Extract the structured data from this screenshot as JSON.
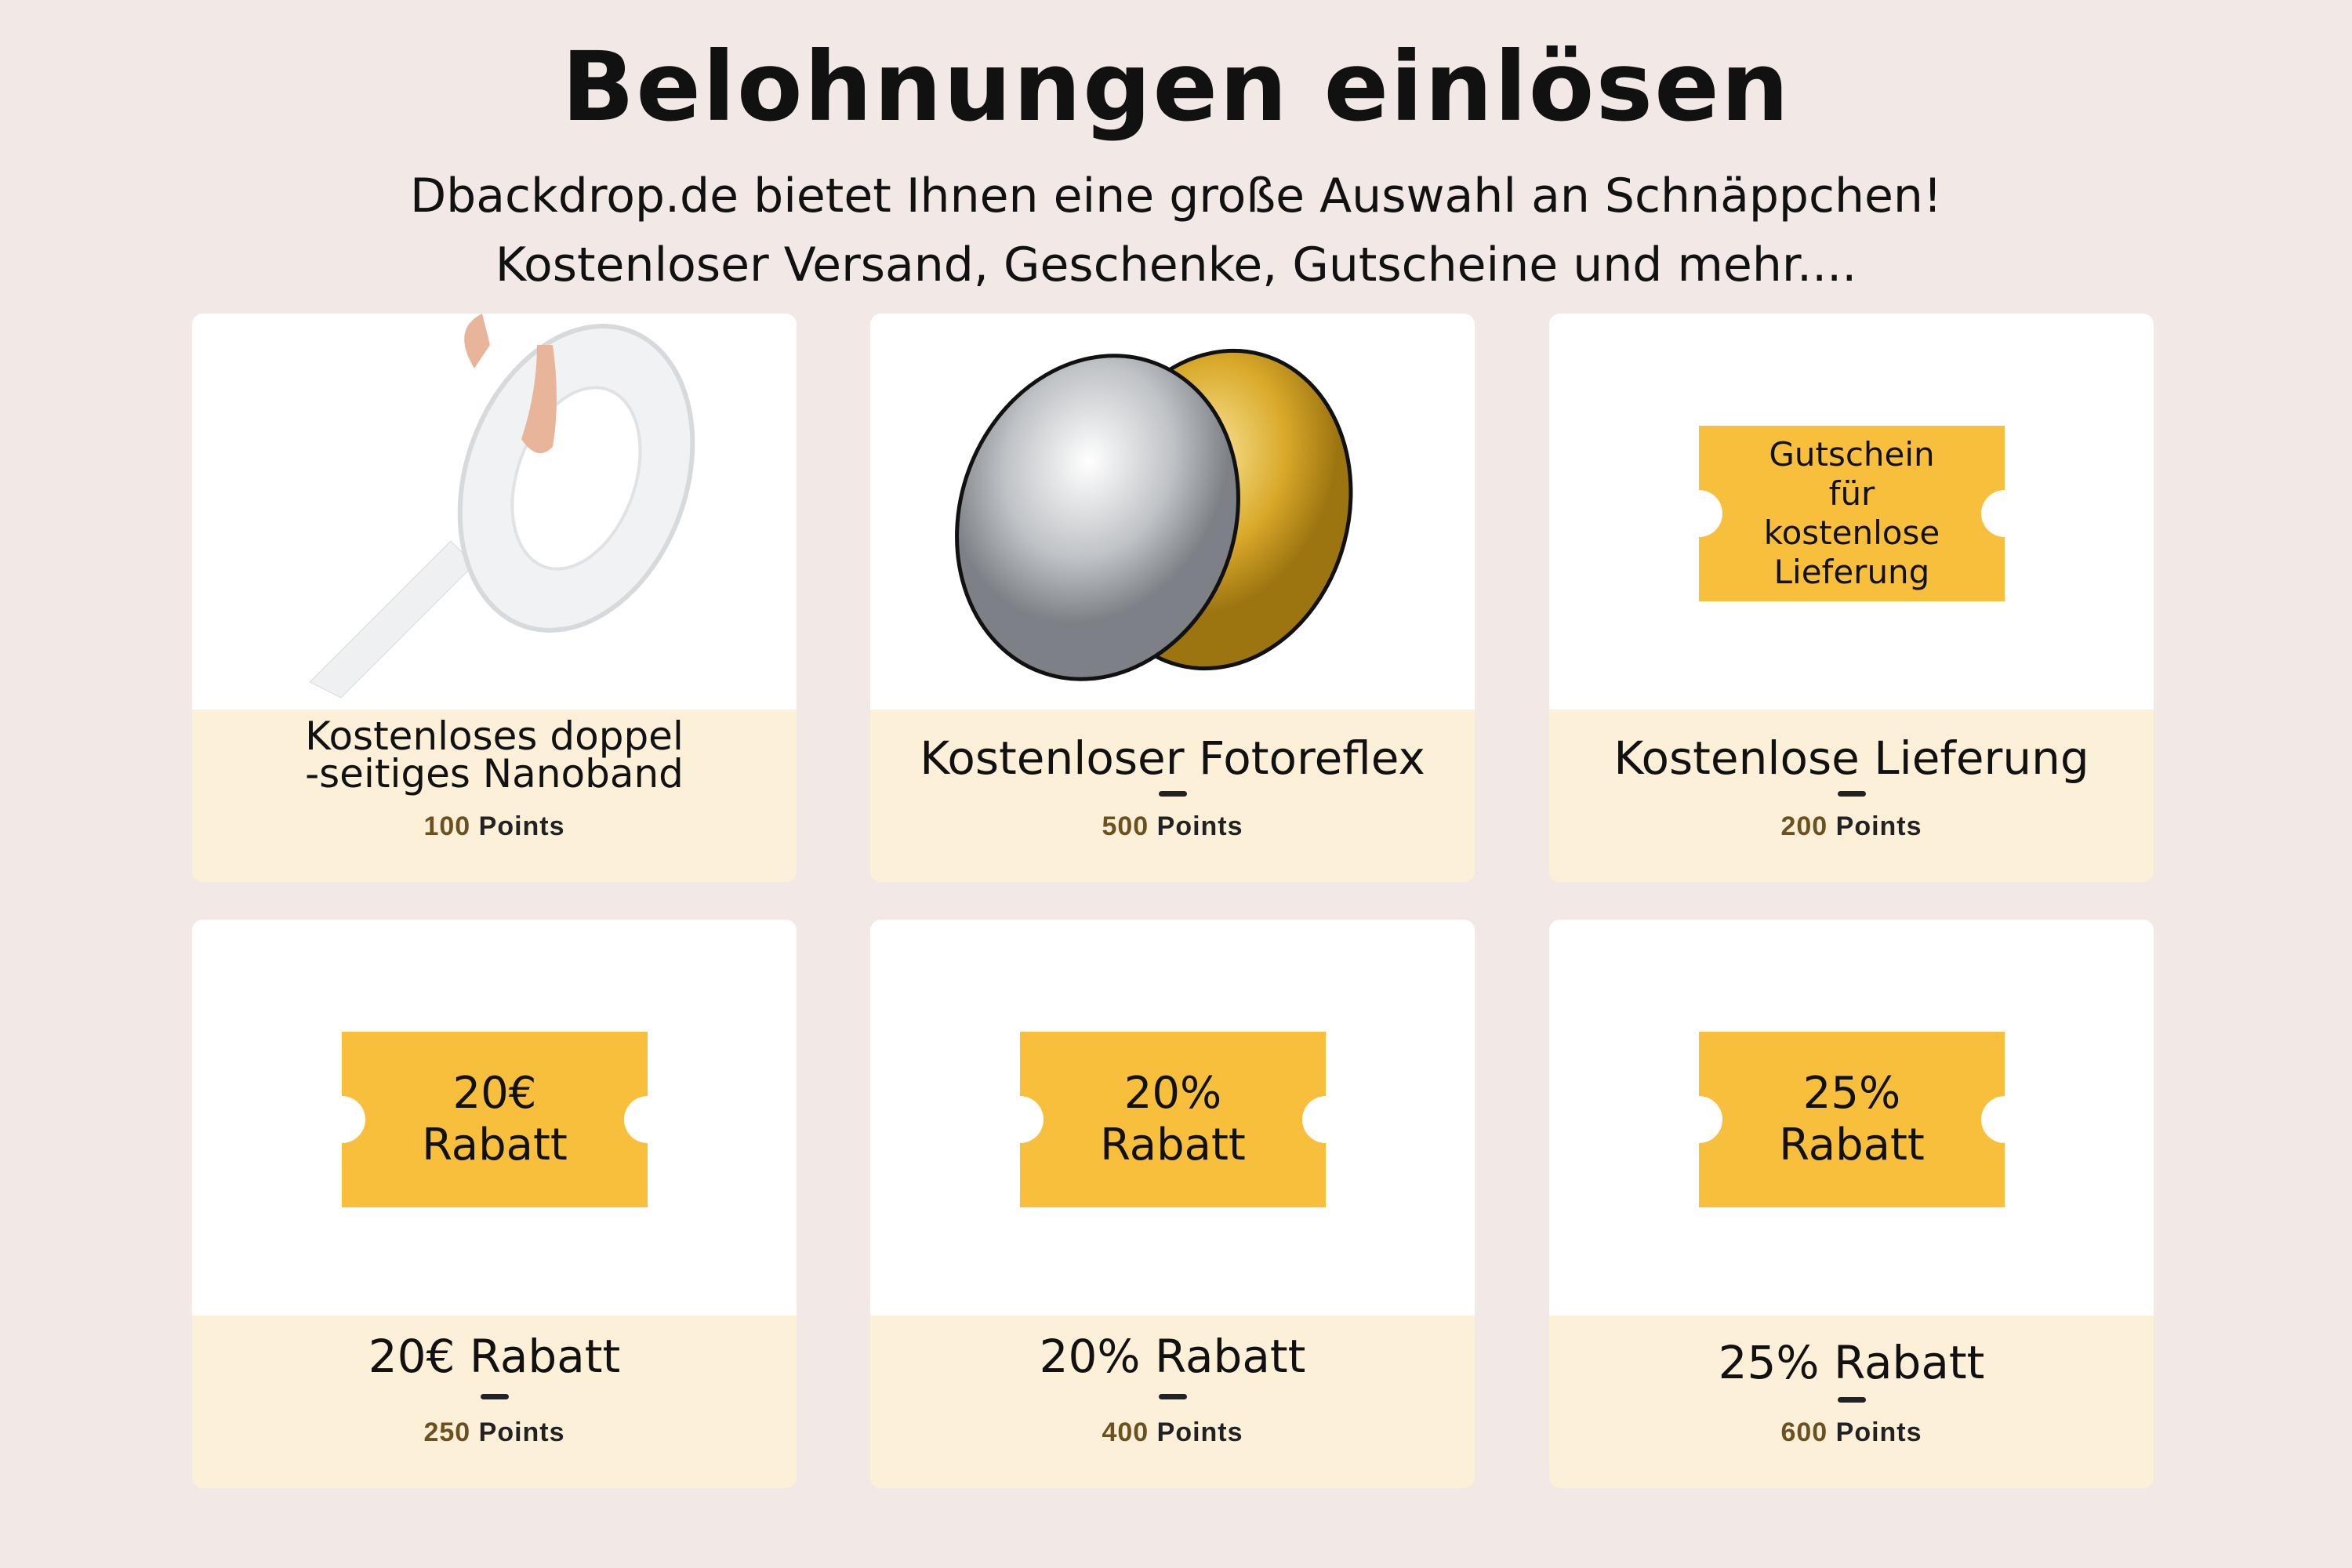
{
  "header": {
    "title": "Belohnungen einlösen",
    "subtitle_line1": "Dbackdrop.de bietet Ihnen eine große Auswahl an Schnäppchen!",
    "subtitle_line2": "Kostenloser Versand, Geschenke, Gutscheine und mehr...."
  },
  "rewards": [
    {
      "title_line1": "Kostenloses doppel",
      "title_line2": "-seitiges Nanoband",
      "points": "100",
      "points_label": "Points",
      "image": "nano-tape"
    },
    {
      "title": "Kostenloser Fotoreflex",
      "points": "500",
      "points_label": "Points",
      "image": "reflector"
    },
    {
      "title": "Kostenlose Lieferung",
      "points": "200",
      "points_label": "Points",
      "ticket": "Gutschein für kostenlose Lieferung"
    },
    {
      "title": "20€ Rabatt",
      "points": "250",
      "points_label": "Points",
      "ticket_line1": "20€",
      "ticket_line2": "Rabatt"
    },
    {
      "title": "20% Rabatt",
      "points": "400",
      "points_label": "Points",
      "ticket_line1": "20%",
      "ticket_line2": "Rabatt"
    },
    {
      "title": "25% Rabatt",
      "points": "600",
      "points_label": "Points",
      "ticket_line1": "25%",
      "ticket_line2": "Rabatt"
    }
  ],
  "colors": {
    "background": "#f2e9e7",
    "footer": "#fdf0d9",
    "ticket": "#f7bf3c",
    "points_number": "#6b5020"
  }
}
